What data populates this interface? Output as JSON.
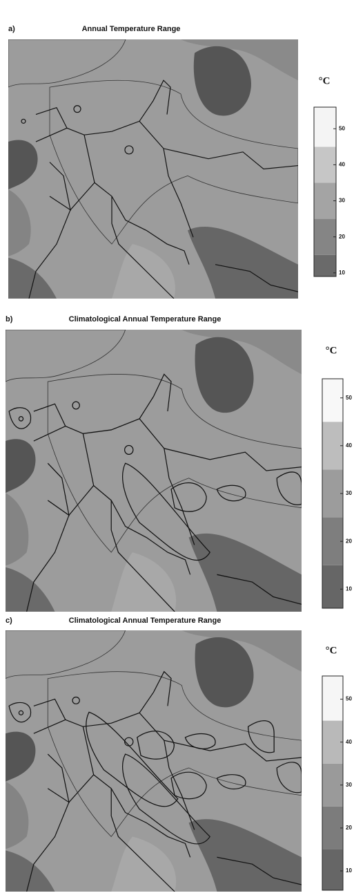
{
  "panels": [
    {
      "label": "a)",
      "title": "Annual Temperature Range",
      "colorbar": {
        "unit": "°C",
        "lim": [
          9,
          56
        ],
        "ticks": [
          10,
          20,
          30,
          40,
          50
        ],
        "levels": [
          15,
          25,
          35,
          45
        ],
        "colors": [
          "#6a6a6a",
          "#858585",
          "#a4a4a4",
          "#c6c6c6",
          "#f4f4f4"
        ]
      }
    },
    {
      "label": "b)",
      "title": "Climatological Annual Temperature Range",
      "colorbar": {
        "unit": "°C",
        "lim": [
          6,
          54
        ],
        "ticks": [
          10,
          20,
          30,
          40,
          50
        ],
        "levels": [
          15,
          25,
          35,
          45
        ],
        "colors": [
          "#666666",
          "#7e7e7e",
          "#9c9c9c",
          "#bdbdbd",
          "#f8f8f8"
        ]
      }
    },
    {
      "label": "c)",
      "title": "Climatological Annual Temperature Range",
      "colorbar": {
        "unit": "°C",
        "lim": [
          5.5,
          55.4
        ],
        "ticks": [
          10,
          20,
          30,
          40,
          50
        ],
        "levels": [
          15,
          25,
          35,
          45
        ],
        "colors": [
          "#666666",
          "#7c7c7c",
          "#9a9a9a",
          "#b9b9b9",
          "#f6f6f6"
        ]
      }
    }
  ]
}
